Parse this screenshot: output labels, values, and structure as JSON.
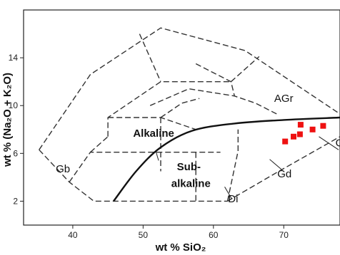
{
  "chart_data": {
    "type": "scatter",
    "title": "",
    "xlabel": "wt % SiO₂",
    "ylabel": "wt % (Na₂O + K₂O)",
    "xlim": [
      33,
      78
    ],
    "ylim": [
      0,
      18
    ],
    "x_ticks": [
      "40",
      "50",
      "60",
      "70"
    ],
    "x_tick_values": [
      40,
      50,
      60,
      70
    ],
    "y_ticks": [
      "2",
      "6",
      "10",
      "14"
    ],
    "y_tick_values": [
      2,
      6,
      10,
      14
    ],
    "grid": false,
    "marker_color": "#ee1111",
    "series": [
      {
        "values": [
          {
            "x": 70.2,
            "y": 7.0
          },
          {
            "x": 71.4,
            "y": 7.4
          },
          {
            "x": 72.3,
            "y": 7.6
          },
          {
            "x": 72.4,
            "y": 8.4
          },
          {
            "x": 74.1,
            "y": 8.0
          },
          {
            "x": 75.6,
            "y": 8.3
          }
        ]
      }
    ],
    "divider_curve": [
      {
        "x": 45.8,
        "y": 2.0
      },
      {
        "x": 49.0,
        "y": 4.5
      },
      {
        "x": 52.5,
        "y": 6.5
      },
      {
        "x": 57.0,
        "y": 7.9
      },
      {
        "x": 63.0,
        "y": 8.5
      },
      {
        "x": 70.0,
        "y": 8.8
      },
      {
        "x": 78.0,
        "y": 9.0
      }
    ],
    "fields": [
      {
        "label": "AGr",
        "x": 70.0,
        "y": 10.3,
        "style": "normal"
      },
      {
        "label": "Alkaline",
        "x": 51.5,
        "y": 7.4,
        "style": "bold"
      },
      {
        "label": "Gb",
        "x": 38.6,
        "y": 4.4,
        "style": "normal"
      },
      {
        "label": "Sub-",
        "x": 56.5,
        "y": 4.6,
        "style": "bold"
      },
      {
        "label": "alkaline",
        "x": 56.8,
        "y": 3.2,
        "style": "bold"
      },
      {
        "label": "Di",
        "x": 62.8,
        "y": 1.9,
        "style": "normal"
      },
      {
        "label": "Gd",
        "x": 70.1,
        "y": 4.0,
        "style": "normal"
      },
      {
        "label": "Gr",
        "x": 78.2,
        "y": 6.6,
        "style": "normal"
      }
    ],
    "field_boundaries": [
      [
        {
          "x": 35.2,
          "y": 6.3
        },
        {
          "x": 42.5,
          "y": 12.6
        },
        {
          "x": 52.5,
          "y": 16.5
        },
        {
          "x": 64.5,
          "y": 14.6
        },
        {
          "x": 78.0,
          "y": 9.3
        }
      ],
      [
        {
          "x": 35.2,
          "y": 6.3
        },
        {
          "x": 39.5,
          "y": 3.6
        },
        {
          "x": 43.0,
          "y": 2.0
        },
        {
          "x": 62.0,
          "y": 2.0
        }
      ],
      [
        {
          "x": 39.5,
          "y": 3.6
        },
        {
          "x": 42.5,
          "y": 6.1
        },
        {
          "x": 57.5,
          "y": 6.1
        },
        {
          "x": 61.0,
          "y": 6.1
        }
      ],
      [
        {
          "x": 42.5,
          "y": 6.1
        },
        {
          "x": 45.0,
          "y": 7.4
        }
      ],
      [
        {
          "x": 45.0,
          "y": 7.4
        },
        {
          "x": 45.0,
          "y": 9.0
        },
        {
          "x": 52.5,
          "y": 12.0
        },
        {
          "x": 62.5,
          "y": 12.0
        }
      ],
      [
        {
          "x": 45.0,
          "y": 9.0
        },
        {
          "x": 52.5,
          "y": 9.0
        },
        {
          "x": 57.5,
          "y": 8.0
        }
      ],
      [
        {
          "x": 51.0,
          "y": 10.0
        },
        {
          "x": 56.5,
          "y": 11.4
        },
        {
          "x": 63.0,
          "y": 10.8
        },
        {
          "x": 66.0,
          "y": 10.2
        },
        {
          "x": 69.0,
          "y": 9.3
        }
      ],
      [
        {
          "x": 52.5,
          "y": 9.0
        },
        {
          "x": 55.5,
          "y": 10.2
        },
        {
          "x": 58.0,
          "y": 10.6
        }
      ],
      [
        {
          "x": 52.5,
          "y": 9.0
        },
        {
          "x": 52.5,
          "y": 6.1
        },
        {
          "x": 52.5,
          "y": 4.5
        }
      ],
      [
        {
          "x": 57.5,
          "y": 6.1
        },
        {
          "x": 57.5,
          "y": 2.0
        }
      ],
      [
        {
          "x": 62.0,
          "y": 2.0
        },
        {
          "x": 63.5,
          "y": 6.2
        },
        {
          "x": 63.5,
          "y": 8.0
        }
      ],
      [
        {
          "x": 62.0,
          "y": 2.0
        },
        {
          "x": 69.0,
          "y": 4.4
        },
        {
          "x": 78.0,
          "y": 7.4
        }
      ],
      [
        {
          "x": 49.5,
          "y": 16.0
        },
        {
          "x": 52.5,
          "y": 12.0
        }
      ],
      [
        {
          "x": 57.5,
          "y": 13.5
        },
        {
          "x": 62.5,
          "y": 12.0
        },
        {
          "x": 63.0,
          "y": 10.8
        }
      ],
      [
        {
          "x": 62.5,
          "y": 12.0
        },
        {
          "x": 66.5,
          "y": 14.1
        }
      ]
    ],
    "leaders": [
      [
        {
          "x": 75.0,
          "y": 7.4
        },
        {
          "x": 77.8,
          "y": 6.3
        }
      ],
      [
        {
          "x": 68.0,
          "y": 5.5
        },
        {
          "x": 69.8,
          "y": 4.6
        }
      ],
      [
        {
          "x": 61.6,
          "y": 3.2
        },
        {
          "x": 62.6,
          "y": 2.2
        }
      ],
      [
        {
          "x": 51.8,
          "y": 6.2
        },
        {
          "x": 52.2,
          "y": 5.4
        }
      ]
    ]
  }
}
